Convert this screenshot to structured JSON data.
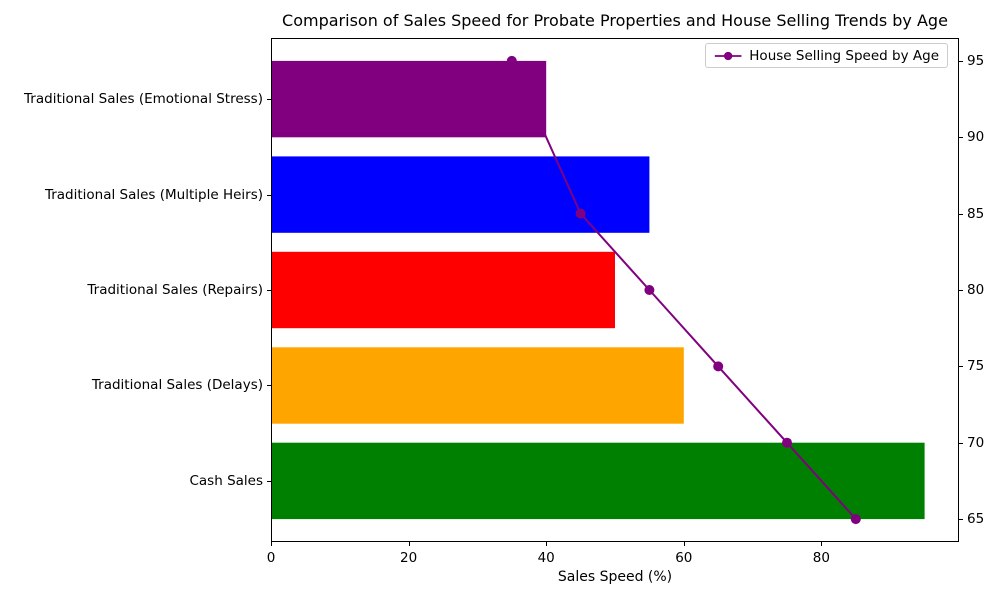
{
  "chart_data": {
    "type": "bar",
    "orientation": "horizontal",
    "title": "Comparison of Sales Speed for Probate Properties and House Selling Trends by Age",
    "xlabel": "Sales Speed (%)",
    "xlim": [
      0,
      100
    ],
    "x_ticks": [
      0,
      20,
      40,
      60,
      80
    ],
    "categories_order": "top-to-bottom",
    "categories": [
      "Traditional Sales (Emotional Stress)",
      "Traditional Sales (Multiple Heirs)",
      "Traditional Sales (Repairs)",
      "Traditional Sales (Delays)",
      "Cash Sales"
    ],
    "series": [
      {
        "name": "Sales Speed (%)",
        "type": "barh",
        "values": [
          40,
          55,
          50,
          60,
          95
        ],
        "colors": [
          "#800080",
          "#0000ff",
          "#ff0000",
          "#ffa500",
          "#008000"
        ]
      },
      {
        "name": "House Selling Speed by Age",
        "type": "line",
        "marker": "circle",
        "color": "#800080",
        "x": [
          35,
          45,
          55,
          65,
          75,
          85
        ],
        "y": [
          95,
          85,
          80,
          75,
          70,
          65
        ],
        "y_axis": "right"
      }
    ],
    "right_axis": {
      "ticks": [
        65,
        70,
        75,
        80,
        85,
        90,
        95
      ],
      "ylim": [
        63.5,
        96.5
      ]
    },
    "legend": {
      "position": "upper right",
      "entries": [
        "House Selling Speed by Age"
      ]
    },
    "grid": false,
    "background_color": "#ffffff",
    "spine_color": "#000000"
  }
}
